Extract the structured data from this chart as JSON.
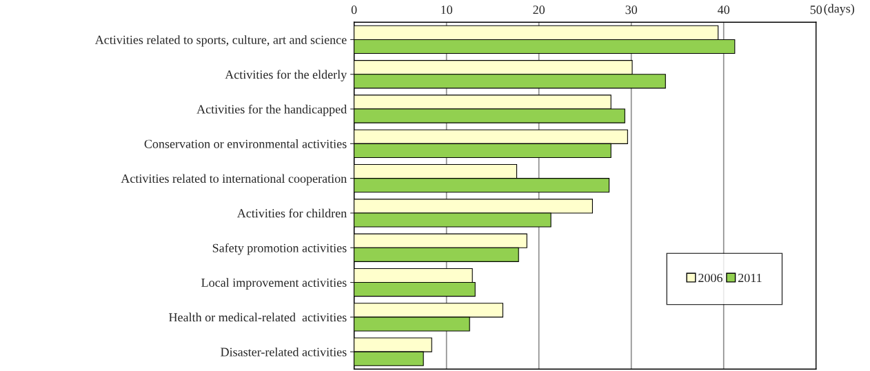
{
  "chart_data": {
    "type": "bar",
    "orientation": "horizontal",
    "xlabel": "(days)",
    "categories": [
      "Activities related to sports, culture, art and science",
      "Activities for the elderly",
      "Activities for the handicapped",
      "Conservation or environmental activities",
      "Activities related to international cooperation",
      "Activities for children",
      "Safety promotion activities",
      "Local improvement activities",
      "Health or medical-related  activities",
      "Disaster-related activities"
    ],
    "series": [
      {
        "name": "2006",
        "color": "#ffffcc",
        "values": [
          39.4,
          30.1,
          27.8,
          29.6,
          17.6,
          25.8,
          18.7,
          12.8,
          16.1,
          8.4
        ]
      },
      {
        "name": "2011",
        "color": "#92d050",
        "values": [
          41.2,
          33.7,
          29.3,
          27.8,
          27.6,
          21.3,
          17.8,
          13.1,
          12.5,
          7.5
        ]
      }
    ],
    "xlim": [
      0,
      50
    ],
    "xticks": [
      0,
      10,
      20,
      30,
      40,
      50
    ],
    "grid": "x",
    "legend": "bottom right"
  }
}
